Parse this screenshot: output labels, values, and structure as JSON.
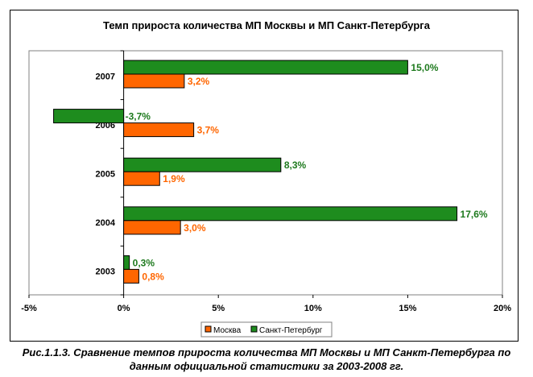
{
  "chart_data": {
    "type": "bar",
    "orientation": "horizontal",
    "title": "Темп прироста количества МП Москвы и МП Санкт-Петербурга",
    "categories": [
      "2007",
      "2006",
      "2005",
      "2004",
      "2003"
    ],
    "series": [
      {
        "name": "Москва",
        "color": "#FF6600",
        "label_color": "#FF6600",
        "values": [
          3.2,
          3.7,
          1.9,
          3.0,
          0.8
        ],
        "labels": [
          "3,2%",
          "3,7%",
          "1,9%",
          "3,0%",
          "0,8%"
        ]
      },
      {
        "name": "Санкт-Петербург",
        "color": "#1E8C1E",
        "label_color": "#1E7A1E",
        "values": [
          15.0,
          -3.7,
          8.3,
          17.6,
          0.3
        ],
        "labels": [
          "15,0%",
          "-3,7%",
          "8,3%",
          "17,6%",
          "0,3%"
        ]
      }
    ],
    "xlim": [
      -5,
      20
    ],
    "xticks": [
      -5,
      0,
      5,
      10,
      15,
      20
    ],
    "xtick_labels": [
      "-5%",
      "0%",
      "5%",
      "10%",
      "15%",
      "20%"
    ],
    "grid": false,
    "legend_position": "bottom"
  },
  "caption": {
    "line1": "Рис.1.1.3. Сравнение темпов прироста количества МП Москвы и МП Санкт-Петербурга по",
    "line2": "данным официальной статистики за 2003-2008 гг."
  }
}
